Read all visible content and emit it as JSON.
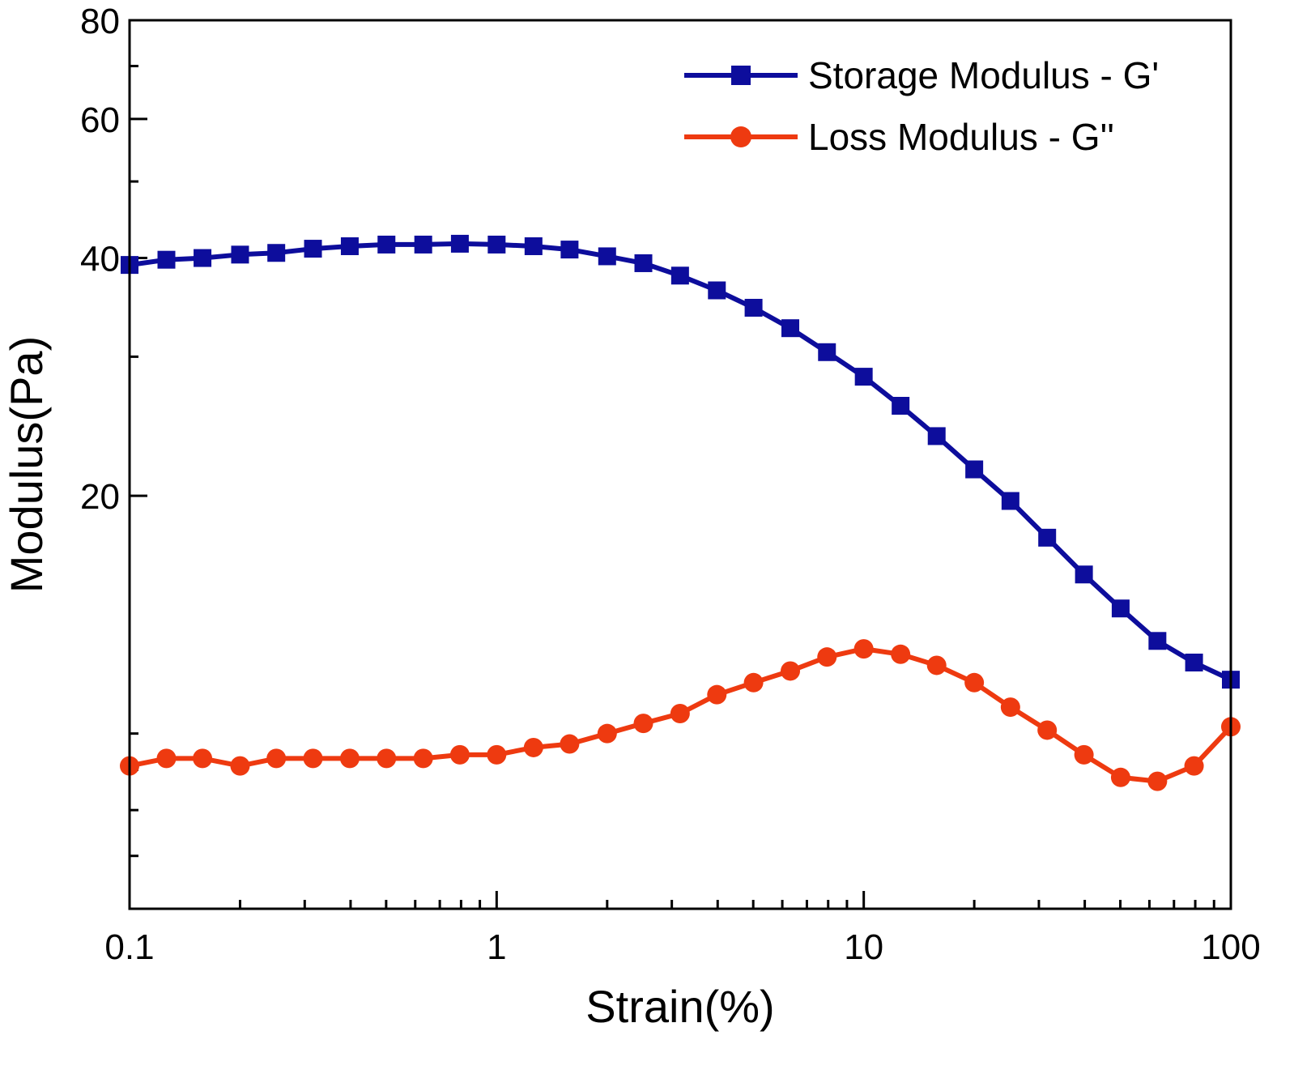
{
  "chart_data": {
    "type": "line",
    "title": "",
    "xlabel": "Strain(%)",
    "ylabel": "Modulus(Pa)",
    "x_scale": "log",
    "y_scale": "log",
    "xlim": [
      0.1,
      100
    ],
    "ylim": [
      6,
      80
    ],
    "x_ticks": [
      0.1,
      1,
      10,
      100
    ],
    "x_tick_labels": [
      "0.1",
      "1",
      "10",
      "100"
    ],
    "y_ticks": [
      20,
      40,
      60,
      80
    ],
    "y_tick_labels": [
      "20",
      "40",
      "60",
      "80"
    ],
    "grid": false,
    "legend_position": "top-right",
    "x": [
      0.1,
      0.126,
      0.158,
      0.2,
      0.251,
      0.316,
      0.398,
      0.501,
      0.631,
      0.794,
      1,
      1.26,
      1.58,
      2,
      2.51,
      3.16,
      3.98,
      5.01,
      6.31,
      7.94,
      10,
      12.6,
      15.8,
      20,
      25.1,
      31.6,
      39.8,
      50.1,
      63.1,
      79.4,
      100
    ],
    "series": [
      {
        "name": "Storage Modulus - G'",
        "color": "#0d0d9c",
        "marker": "square",
        "values": [
          39.2,
          39.8,
          40.0,
          40.4,
          40.6,
          41.1,
          41.4,
          41.6,
          41.6,
          41.7,
          41.6,
          41.4,
          41.0,
          40.2,
          39.4,
          38.0,
          36.4,
          34.6,
          32.6,
          30.4,
          28.3,
          26.0,
          23.8,
          21.6,
          19.7,
          17.7,
          15.9,
          14.4,
          13.1,
          12.3,
          11.7
        ],
        "line_width": 6
      },
      {
        "name": "Loss Modulus - G''",
        "color": "#ee3a10",
        "marker": "circle",
        "values": [
          9.1,
          9.3,
          9.3,
          9.1,
          9.3,
          9.3,
          9.3,
          9.3,
          9.3,
          9.4,
          9.4,
          9.6,
          9.7,
          10.0,
          10.3,
          10.6,
          11.2,
          11.6,
          12.0,
          12.5,
          12.8,
          12.6,
          12.2,
          11.6,
          10.8,
          10.1,
          9.4,
          8.8,
          8.7,
          9.1,
          10.2
        ],
        "line_width": 6
      }
    ]
  }
}
